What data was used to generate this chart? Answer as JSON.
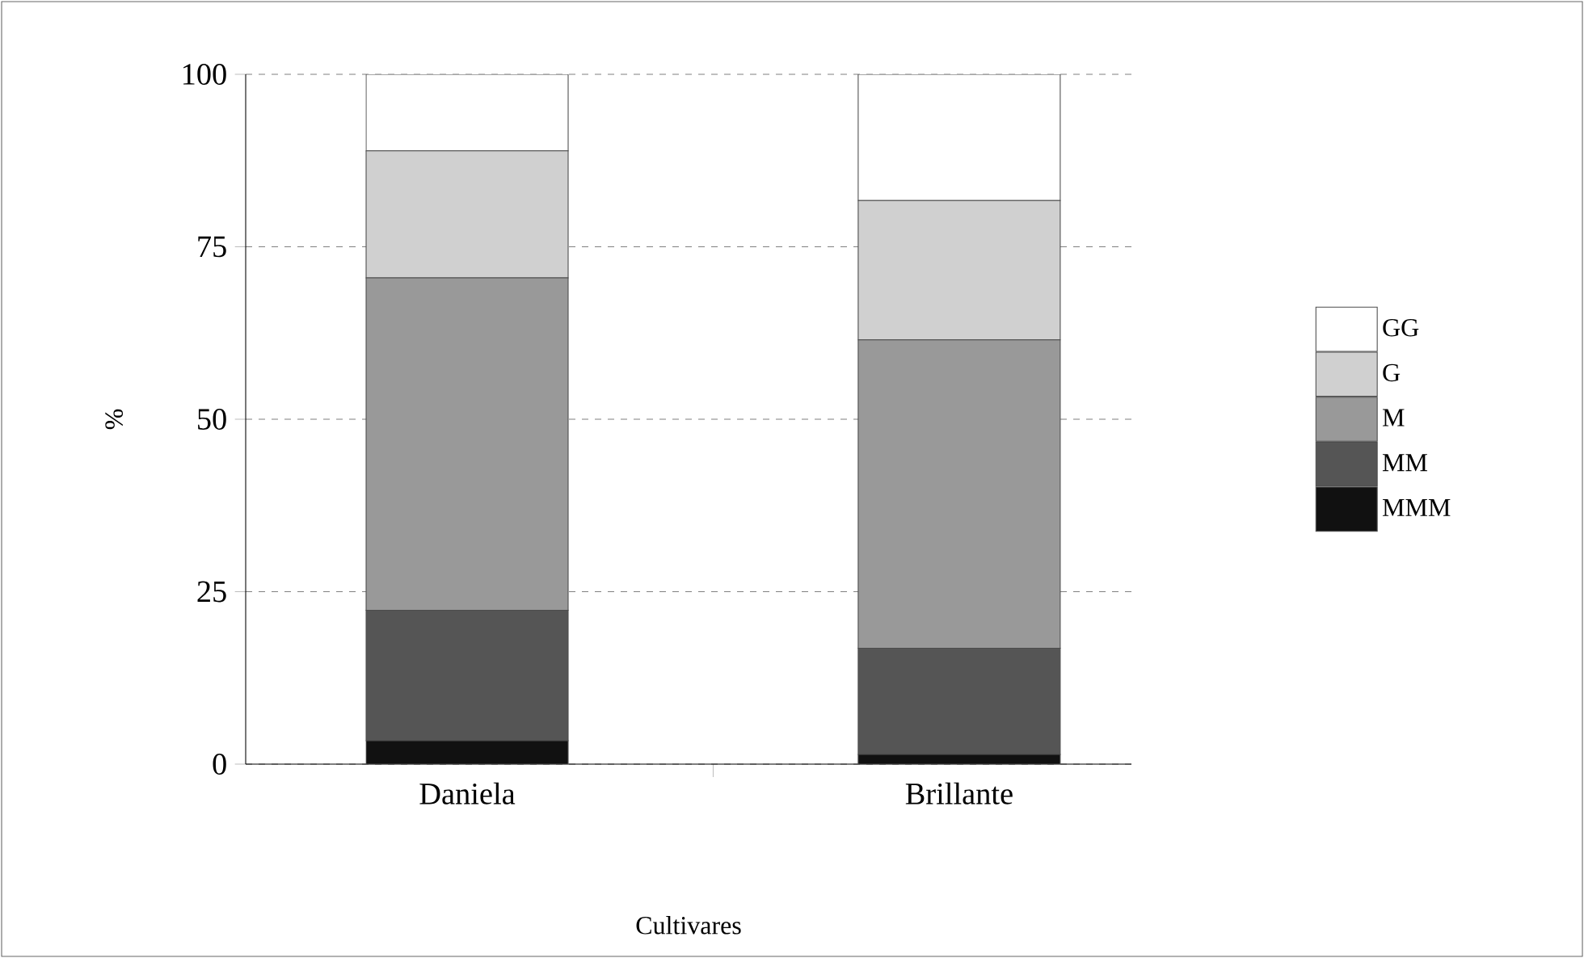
{
  "chart_data": {
    "type": "bar",
    "stacked": true,
    "xlabel": "Cultivares",
    "ylabel": "%",
    "categories": [
      "Daniela",
      "Brillante"
    ],
    "series": [
      {
        "name": "MMM",
        "color": "#111111",
        "values": [
          3.4,
          1.4
        ]
      },
      {
        "name": "MM",
        "color": "#555555",
        "values": [
          18.9,
          15.4
        ]
      },
      {
        "name": "M",
        "color": "#999999",
        "values": [
          48.2,
          44.7
        ]
      },
      {
        "name": "G",
        "color": "#d0d0d0",
        "values": [
          18.4,
          20.2
        ]
      },
      {
        "name": "GG",
        "color": "#ffffff",
        "values": [
          11.1,
          18.3
        ]
      }
    ],
    "ylim": [
      0,
      100
    ],
    "yticks": [
      0,
      25,
      50,
      75,
      100
    ],
    "grid": "y",
    "legend": "right"
  }
}
